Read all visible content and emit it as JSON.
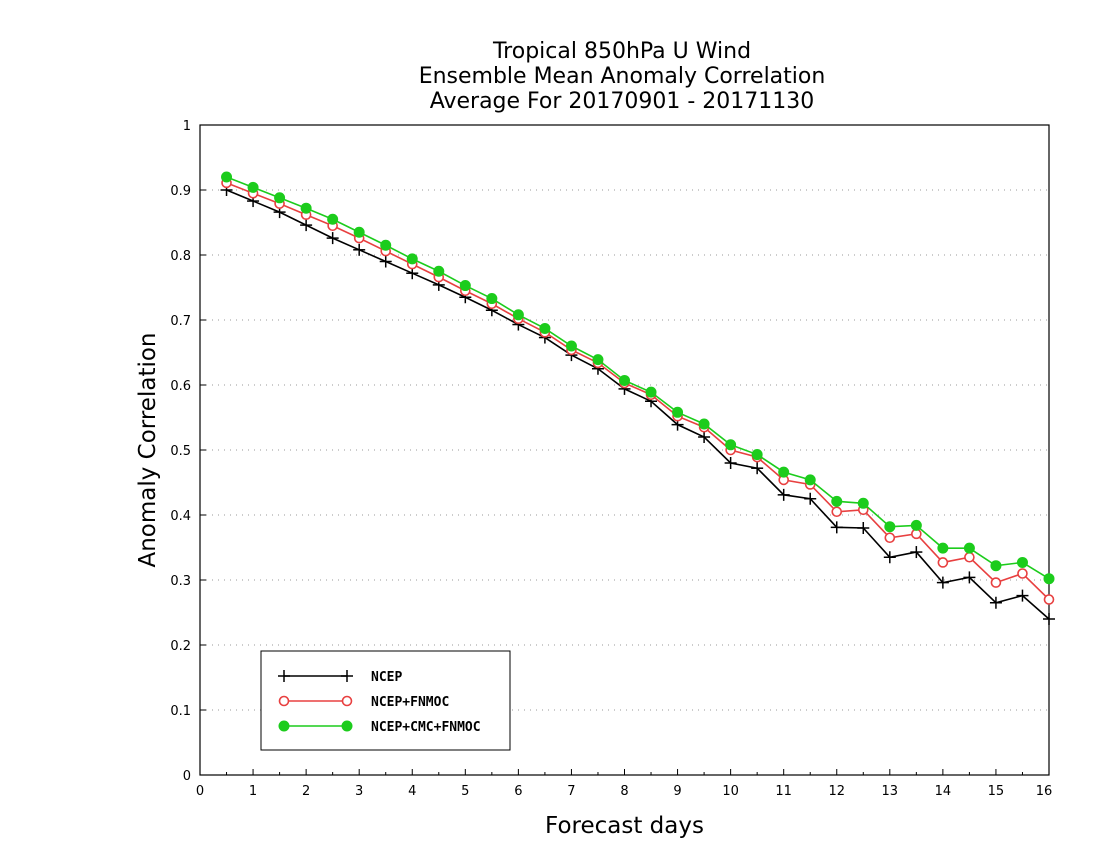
{
  "chart_data": {
    "type": "line",
    "title": [
      "Tropical 850hPa U Wind",
      "Ensemble Mean Anomaly Correlation",
      "Average For 20170901 - 20171130"
    ],
    "xlabel": "Forecast days",
    "ylabel": "Anomaly Correlation",
    "xlim": [
      0,
      16
    ],
    "ylim": [
      0,
      1
    ],
    "xticks": [
      "0",
      "1",
      "2",
      "3",
      "4",
      "5",
      "6",
      "7",
      "8",
      "9",
      "10",
      "11",
      "12",
      "13",
      "14",
      "15",
      "16"
    ],
    "yticks": [
      "0",
      "0.1",
      "0.2",
      "0.3",
      "0.4",
      "0.5",
      "0.6",
      "0.7",
      "0.8",
      "0.9",
      "1"
    ],
    "grid": "horizontal-dotted",
    "legend_position": "bottom-left",
    "x": [
      0.5,
      1,
      1.5,
      2,
      2.5,
      3,
      3.5,
      4,
      4.5,
      5,
      5.5,
      6,
      6.5,
      7,
      7.5,
      8,
      8.5,
      9,
      9.5,
      10,
      10.5,
      11,
      11.5,
      12,
      12.5,
      13,
      13.5,
      14,
      14.5,
      15,
      15.5,
      16
    ],
    "series": [
      {
        "name": "NCEP",
        "color": "#000000",
        "marker": "plus",
        "values": [
          0.9,
          0.883,
          0.866,
          0.846,
          0.826,
          0.808,
          0.79,
          0.772,
          0.754,
          0.735,
          0.715,
          0.693,
          0.673,
          0.646,
          0.625,
          0.594,
          0.575,
          0.539,
          0.52,
          0.48,
          0.472,
          0.431,
          0.425,
          0.381,
          0.38,
          0.335,
          0.343,
          0.296,
          0.304,
          0.265,
          0.276,
          0.24
        ]
      },
      {
        "name": "NCEP+FNMOC",
        "color": "#e84040",
        "marker": "open-circle",
        "values": [
          0.911,
          0.895,
          0.879,
          0.862,
          0.845,
          0.826,
          0.806,
          0.786,
          0.766,
          0.745,
          0.725,
          0.702,
          0.681,
          0.654,
          0.634,
          0.603,
          0.585,
          0.552,
          0.535,
          0.5,
          0.489,
          0.454,
          0.447,
          0.405,
          0.408,
          0.365,
          0.371,
          0.327,
          0.335,
          0.296,
          0.31,
          0.27
        ]
      },
      {
        "name": "NCEP+CMC+FNMOC",
        "color": "#1ccc1c",
        "marker": "filled-circle",
        "values": [
          0.92,
          0.904,
          0.888,
          0.872,
          0.855,
          0.835,
          0.815,
          0.794,
          0.775,
          0.753,
          0.733,
          0.708,
          0.687,
          0.66,
          0.639,
          0.607,
          0.589,
          0.558,
          0.54,
          0.508,
          0.493,
          0.466,
          0.454,
          0.421,
          0.418,
          0.382,
          0.384,
          0.349,
          0.349,
          0.322,
          0.327,
          0.302
        ]
      }
    ]
  }
}
